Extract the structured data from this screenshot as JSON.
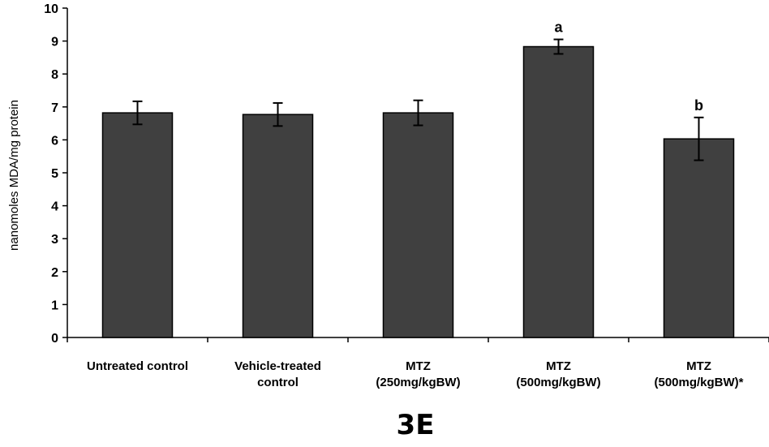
{
  "chart_data": {
    "type": "bar",
    "title": "",
    "xlabel": "",
    "ylabel": "nanomoles MDA/mg protein",
    "ylim": [
      0,
      10
    ],
    "yticks": [
      "0",
      "1",
      "2",
      "3",
      "4",
      "5",
      "6",
      "7",
      "8",
      "9",
      "10"
    ],
    "grid": false,
    "categories": [
      [
        "Untreated control"
      ],
      [
        "Vehicle-treated",
        "control"
      ],
      [
        "MTZ",
        "(250mg/kgBW)"
      ],
      [
        "MTZ",
        "(500mg/kgBW)"
      ],
      [
        "MTZ",
        "(500mg/kgBW)*"
      ]
    ],
    "values": [
      6.82,
      6.77,
      6.82,
      8.83,
      6.03
    ],
    "errors": [
      0.35,
      0.35,
      0.38,
      0.22,
      0.65
    ],
    "annotations": [
      "",
      "",
      "",
      "a",
      "b"
    ],
    "bar_color": "#404040",
    "panel_label": "3E"
  }
}
